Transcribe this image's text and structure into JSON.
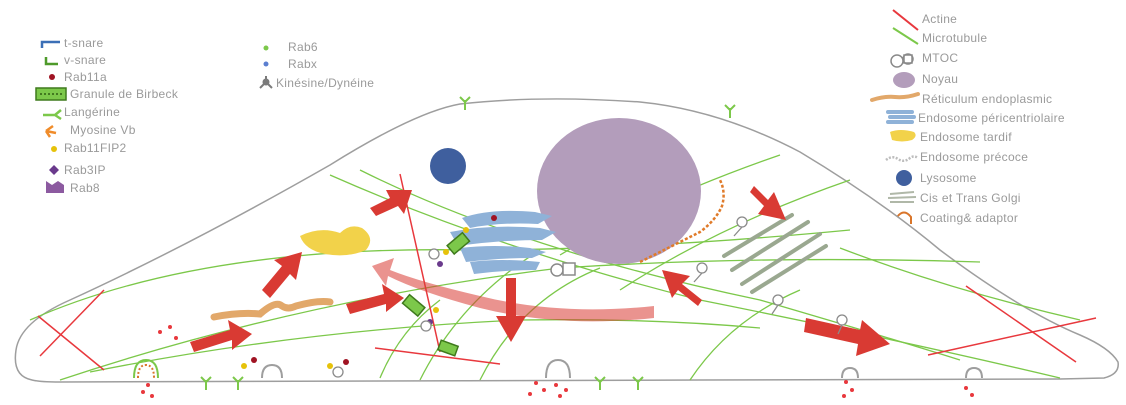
{
  "legend_left": {
    "items": [
      {
        "label": "t-snare",
        "icon": "t-snare-icon"
      },
      {
        "label": "v-snare",
        "icon": "v-snare-icon"
      },
      {
        "label": "Rab11a",
        "icon": "rab11a-dot-icon"
      },
      {
        "label": "Granule de Birbeck",
        "icon": "birbeck-granule-icon"
      },
      {
        "label": "Langérine",
        "icon": "langerine-icon"
      },
      {
        "label": "Myosine Vb",
        "icon": "myosin-vb-icon"
      },
      {
        "label": "Rab11FIP2",
        "icon": "rab11fip2-dot-icon"
      },
      {
        "label": "Rab3IP",
        "icon": "rab3ip-diamond-icon"
      },
      {
        "label": "Rab8",
        "icon": "rab8-cup-icon"
      }
    ]
  },
  "legend_middle": {
    "items": [
      {
        "label": "Rab6",
        "icon": "rab6-dot-icon"
      },
      {
        "label": "Rabx",
        "icon": "rabx-dot-icon"
      },
      {
        "label": "Kinésine/Dynéine",
        "icon": "kinesin-dynein-icon"
      }
    ]
  },
  "legend_right": {
    "items": [
      {
        "label": "Actine",
        "icon": "actin-line-icon"
      },
      {
        "label": "Microtubule",
        "icon": "microtubule-line-icon"
      },
      {
        "label": "MTOC",
        "icon": "mtoc-icon"
      },
      {
        "label": "Noyau",
        "icon": "nucleus-icon"
      },
      {
        "label": "Réticulum endoplasmic",
        "icon": "er-icon"
      },
      {
        "label": "Endosome péricentriolaire",
        "icon": "pericentriolar-endosome-icon"
      },
      {
        "label": "Endosome tardif",
        "icon": "late-endosome-icon"
      },
      {
        "label": "Endosome précoce",
        "icon": "early-endosome-icon"
      },
      {
        "label": "Lysosome",
        "icon": "lysosome-icon"
      },
      {
        "label": "Cis et Trans Golgi",
        "icon": "golgi-icon"
      },
      {
        "label": "Coating& adaptor",
        "icon": "coating-adaptor-icon"
      }
    ]
  },
  "colors": {
    "actin": "#e8383d",
    "microtubule": "#7cc84a",
    "nucleus": "#b39dbb",
    "lysosome": "#3f5f9e",
    "er": "#e2a86a",
    "late_endosome": "#f2d24a",
    "pericentriolar": "#8fb2d8",
    "golgi": "#9aa890",
    "arrow": "#d93a33",
    "outline": "#9e9e9e",
    "label": "#9a9a9a"
  }
}
